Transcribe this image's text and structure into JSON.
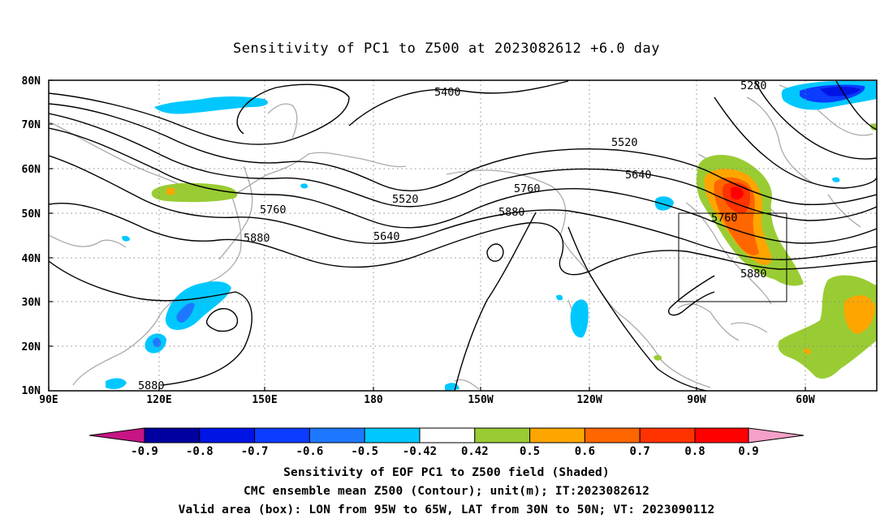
{
  "title": "Sensitivity of PC1 to Z500 at 2023082612 +6.0 day",
  "map": {
    "lon_labels": [
      "90E",
      "120E",
      "150E",
      "180",
      "150W",
      "120W",
      "90W",
      "60W"
    ],
    "lat_labels": [
      "80N",
      "70N",
      "60N",
      "50N",
      "40N",
      "30N",
      "20N",
      "10N"
    ],
    "contours": [
      {
        "label": "5280"
      },
      {
        "label": "5400"
      },
      {
        "label": "5520"
      },
      {
        "label": "5640"
      },
      {
        "label": "5760"
      },
      {
        "label": "5880"
      }
    ],
    "contour_labels": [
      "5400",
      "5280",
      "5520",
      "5640",
      "5520",
      "5760",
      "5760",
      "5880",
      "5640",
      "5760",
      "5880",
      "5880",
      "5880"
    ],
    "valid_box": {
      "lon_from": "95W",
      "lon_to": "65W",
      "lat_from": "30N",
      "lat_to": "50N"
    }
  },
  "colorbar": {
    "tick_labels": [
      "-0.9",
      "-0.8",
      "-0.7",
      "-0.6",
      "-0.5",
      "-0.42",
      "0.42",
      "0.5",
      "0.6",
      "0.7",
      "0.8",
      "0.9"
    ],
    "colors": [
      "#c71585",
      "#0000a0",
      "#0014e6",
      "#0b3cff",
      "#1e78ff",
      "#00c8ff",
      "#ffffff",
      "#99cc33",
      "#ffa500",
      "#ff6600",
      "#ff3300",
      "#ff0000",
      "#f5a0c8"
    ]
  },
  "footer": {
    "line1": "Sensitivity of EOF PC1 to Z500 field (Shaded)",
    "line2": "CMC ensemble mean Z500 (Contour); unit(m); IT:2023082612",
    "line3": "Valid area (box): LON from 95W to 65W, LAT from 30N to 50N; VT: 2023090112"
  }
}
